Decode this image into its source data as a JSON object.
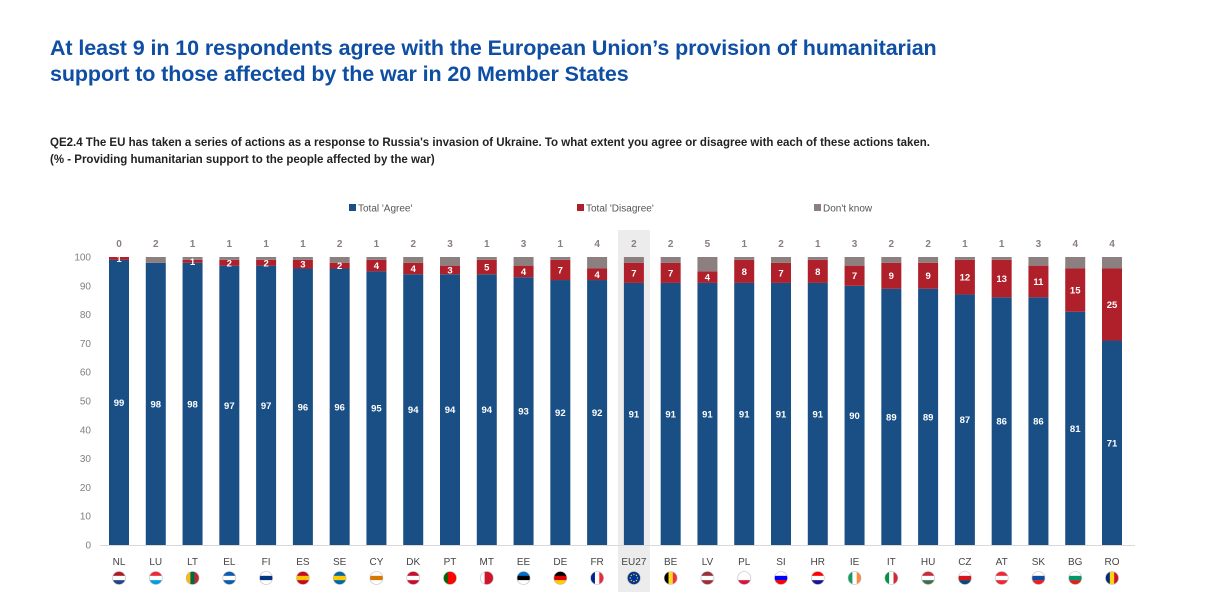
{
  "headline": {
    "line1": "At least 9 in 10 respondents agree with the European Union’s provision of humanitarian",
    "line2": "support to those affected by the war in 20 Member States"
  },
  "question": {
    "line1": "QE2.4  The EU has taken a series of actions as a response to Russia's invasion of Ukraine. To what extent you agree or disagree with each of these actions taken.",
    "line2": "(% - Providing humanitarian support to the people affected by the war)"
  },
  "colors": {
    "agree": "#1a4f86",
    "disagree": "#b0202a",
    "dont_know": "#8c7f80",
    "highlight_bg": "#ececec",
    "headline": "#0e4ea5"
  },
  "chart_data": {
    "type": "bar",
    "stacked": true,
    "title": "At least 9 in 10 respondents agree with the European Union’s provision of humanitarian support to those affected by the war in 20 Member States",
    "xlabel": "",
    "ylabel": "",
    "ylim": [
      0,
      100
    ],
    "yticks": [
      0,
      10,
      20,
      30,
      40,
      50,
      60,
      70,
      80,
      90,
      100
    ],
    "grid": false,
    "legend_position": "top",
    "highlighted_category": "EU27",
    "categories": [
      "NL",
      "LU",
      "LT",
      "EL",
      "FI",
      "ES",
      "SE",
      "CY",
      "DK",
      "PT",
      "MT",
      "EE",
      "DE",
      "FR",
      "EU27",
      "BE",
      "LV",
      "PL",
      "SI",
      "HR",
      "IE",
      "IT",
      "HU",
      "CZ",
      "AT",
      "SK",
      "BG",
      "RO"
    ],
    "series": [
      {
        "name": "Total 'Agree'",
        "values": [
          99,
          98,
          98,
          97,
          97,
          96,
          96,
          95,
          94,
          94,
          94,
          93,
          92,
          92,
          91,
          91,
          91,
          91,
          91,
          91,
          90,
          89,
          89,
          87,
          86,
          86,
          81,
          71
        ]
      },
      {
        "name": "Total 'Disagree'",
        "values": [
          1,
          0,
          1,
          2,
          2,
          3,
          2,
          4,
          4,
          3,
          5,
          4,
          7,
          4,
          7,
          7,
          4,
          8,
          7,
          8,
          7,
          9,
          9,
          12,
          13,
          11,
          15,
          25
        ]
      },
      {
        "name": "Don't know",
        "values": [
          0,
          2,
          1,
          1,
          1,
          1,
          2,
          1,
          2,
          3,
          1,
          3,
          1,
          4,
          2,
          2,
          5,
          1,
          2,
          1,
          3,
          2,
          2,
          1,
          1,
          3,
          4,
          4
        ]
      }
    ],
    "flags": {
      "NL": [
        "#ae1c28",
        "#ffffff",
        "#21468b"
      ],
      "LU": [
        "#ed2939",
        "#ffffff",
        "#00a1de"
      ],
      "LT": [
        "#fdb913",
        "#006a44",
        "#c1272d"
      ],
      "EL": [
        "#0d5eaf",
        "#ffffff",
        "#0d5eaf"
      ],
      "FI": [
        "#ffffff",
        "#003580",
        "#ffffff"
      ],
      "ES": [
        "#c60b1e",
        "#ffc400",
        "#c60b1e"
      ],
      "SE": [
        "#006aa7",
        "#fecc00",
        "#006aa7"
      ],
      "CY": [
        "#ffffff",
        "#d57800",
        "#ffffff"
      ],
      "DK": [
        "#c8102e",
        "#ffffff",
        "#c8102e"
      ],
      "PT": [
        "#006600",
        "#ff0000",
        "#ff0000"
      ],
      "MT": [
        "#ffffff",
        "#cf142b",
        "#cf142b"
      ],
      "EE": [
        "#0072ce",
        "#000000",
        "#ffffff"
      ],
      "DE": [
        "#000000",
        "#dd0000",
        "#ffce00"
      ],
      "FR": [
        "#002395",
        "#ffffff",
        "#ed2939"
      ],
      "EU27": [
        "#003399",
        "#003399",
        "#003399"
      ],
      "BE": [
        "#000000",
        "#fdda24",
        "#ef3340"
      ],
      "LV": [
        "#9e3039",
        "#ffffff",
        "#9e3039"
      ],
      "PL": [
        "#ffffff",
        "#ffffff",
        "#dc143c"
      ],
      "SI": [
        "#ffffff",
        "#0000ff",
        "#ff0000"
      ],
      "HR": [
        "#ff0000",
        "#ffffff",
        "#171796"
      ],
      "IE": [
        "#169b62",
        "#ffffff",
        "#ff883e"
      ],
      "IT": [
        "#009246",
        "#ffffff",
        "#ce2b37"
      ],
      "HU": [
        "#cd2a3e",
        "#ffffff",
        "#436f4d"
      ],
      "CZ": [
        "#ffffff",
        "#d7141a",
        "#11457e"
      ],
      "AT": [
        "#ed2939",
        "#ffffff",
        "#ed2939"
      ],
      "SK": [
        "#ffffff",
        "#0b4ea2",
        "#ee1c25"
      ],
      "BG": [
        "#ffffff",
        "#00966e",
        "#d62612"
      ],
      "RO": [
        "#002b7f",
        "#fcd116",
        "#ce1126"
      ]
    },
    "flag_orientation": {
      "vertical": [
        "LT",
        "BE",
        "FR",
        "IE",
        "IT",
        "RO",
        "PT",
        "MT"
      ]
    }
  }
}
